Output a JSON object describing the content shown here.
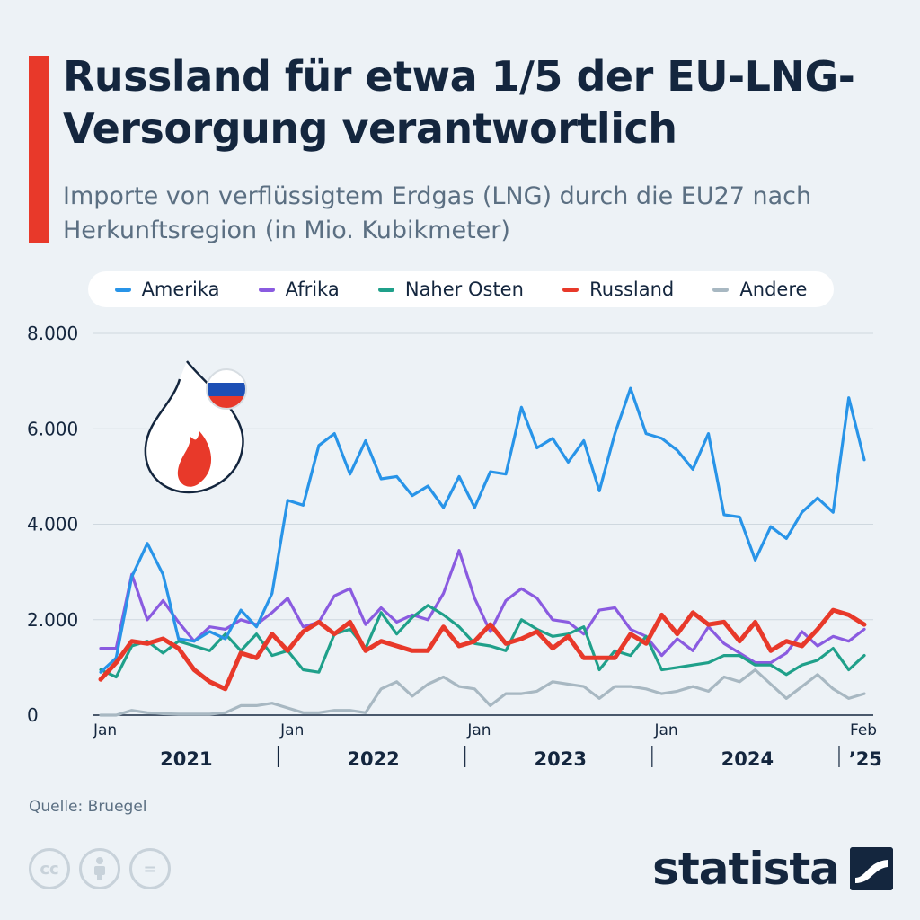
{
  "title": "Russland für etwa 1/5 der EU-LNG-Versorgung verantwortlich",
  "subtitle": "Importe von verflüssigtem Erdgas (LNG) durch die EU27 nach Herkunftsregion (in Mio. Kubikmeter)",
  "source": "Quelle: Bruegel",
  "brand": "statista",
  "license_icons": [
    "cc-icon",
    "attribution-icon",
    "no-derivatives-icon"
  ],
  "license_labels": [
    "cc",
    "",
    "="
  ],
  "chart_data": {
    "type": "line",
    "ylim": [
      0,
      8000
    ],
    "yticks": [
      0,
      2000,
      4000,
      6000,
      8000
    ],
    "ytick_labels": [
      "0",
      "2.000",
      "4.000",
      "6.000",
      "8.000"
    ],
    "x": [
      "2021-01",
      "2021-02",
      "2021-03",
      "2021-04",
      "2021-05",
      "2021-06",
      "2021-07",
      "2021-08",
      "2021-09",
      "2021-10",
      "2021-11",
      "2021-12",
      "2022-01",
      "2022-02",
      "2022-03",
      "2022-04",
      "2022-05",
      "2022-06",
      "2022-07",
      "2022-08",
      "2022-09",
      "2022-10",
      "2022-11",
      "2022-12",
      "2023-01",
      "2023-02",
      "2023-03",
      "2023-04",
      "2023-05",
      "2023-06",
      "2023-07",
      "2023-08",
      "2023-09",
      "2023-10",
      "2023-11",
      "2023-12",
      "2024-01",
      "2024-02",
      "2024-03",
      "2024-04",
      "2024-05",
      "2024-06",
      "2024-07",
      "2024-08",
      "2024-09",
      "2024-10",
      "2024-11",
      "2024-12",
      "2025-01",
      "2025-02"
    ],
    "x_tick_labels": [
      {
        "index": 0,
        "label": "Jan"
      },
      {
        "index": 12,
        "label": "Jan"
      },
      {
        "index": 24,
        "label": "Jan"
      },
      {
        "index": 36,
        "label": "Jan"
      },
      {
        "index": 49,
        "label": "Feb"
      }
    ],
    "year_labels": [
      {
        "label": "2021",
        "start": 0,
        "end": 11
      },
      {
        "label": "2022",
        "start": 12,
        "end": 23
      },
      {
        "label": "2023",
        "start": 24,
        "end": 35
      },
      {
        "label": "2024",
        "start": 36,
        "end": 47
      },
      {
        "label": "’25",
        "start": 48,
        "end": 49
      }
    ],
    "series": [
      {
        "name": "Amerika",
        "color": "#2894e8",
        "width": 3.2,
        "values": [
          900,
          1200,
          2900,
          3600,
          2950,
          1600,
          1550,
          1750,
          1600,
          2200,
          1850,
          2550,
          4500,
          4400,
          5650,
          5900,
          5050,
          5750,
          4950,
          5000,
          4600,
          4800,
          4350,
          5000,
          4350,
          5100,
          5050,
          6450,
          5600,
          5800,
          5300,
          5750,
          4700,
          5900,
          6850,
          5900,
          5800,
          5550,
          5150,
          5900,
          4200,
          4150,
          3250,
          3950,
          3700,
          4250,
          4550,
          4250,
          6650,
          5350
        ]
      },
      {
        "name": "Afrika",
        "color": "#8a5be0",
        "width": 3.2,
        "values": [
          1400,
          1400,
          2950,
          2000,
          2400,
          1950,
          1550,
          1850,
          1800,
          2000,
          1900,
          2150,
          2450,
          1850,
          1950,
          2500,
          2650,
          1900,
          2250,
          1950,
          2100,
          2000,
          2550,
          3450,
          2450,
          1750,
          2400,
          2650,
          2450,
          2000,
          1950,
          1700,
          2200,
          2250,
          1800,
          1650,
          1250,
          1600,
          1350,
          1850,
          1500,
          1300,
          1100,
          1100,
          1300,
          1750,
          1450,
          1650,
          1550,
          1800
        ]
      },
      {
        "name": "Naher Osten",
        "color": "#1fa08a",
        "width": 3.2,
        "values": [
          950,
          800,
          1450,
          1550,
          1300,
          1550,
          1450,
          1350,
          1700,
          1350,
          1700,
          1250,
          1350,
          950,
          900,
          1700,
          1800,
          1400,
          2150,
          1700,
          2050,
          2300,
          2100,
          1850,
          1500,
          1450,
          1350,
          2000,
          1800,
          1650,
          1700,
          1850,
          950,
          1350,
          1250,
          1650,
          950,
          1000,
          1050,
          1100,
          1250,
          1250,
          1050,
          1050,
          850,
          1050,
          1150,
          1400,
          950,
          1250
        ]
      },
      {
        "name": "Russland",
        "color": "#e8392a",
        "width": 5,
        "values": [
          750,
          1100,
          1550,
          1500,
          1600,
          1400,
          950,
          700,
          550,
          1300,
          1200,
          1700,
          1350,
          1750,
          1950,
          1700,
          1950,
          1350,
          1550,
          1450,
          1350,
          1350,
          1850,
          1450,
          1550,
          1900,
          1500,
          1600,
          1750,
          1400,
          1650,
          1200,
          1200,
          1200,
          1700,
          1500,
          2100,
          1700,
          2150,
          1900,
          1950,
          1550,
          1950,
          1350,
          1550,
          1450,
          1800,
          2200,
          2100,
          1900
        ]
      },
      {
        "name": "Andere",
        "color": "#a8b8c2",
        "width": 3.2,
        "values": [
          0,
          0,
          100,
          50,
          30,
          20,
          20,
          20,
          50,
          200,
          200,
          250,
          150,
          50,
          50,
          100,
          100,
          50,
          550,
          700,
          400,
          650,
          800,
          600,
          550,
          200,
          450,
          450,
          500,
          700,
          650,
          600,
          350,
          600,
          600,
          550,
          450,
          500,
          600,
          500,
          800,
          700,
          950,
          650,
          350,
          600,
          850,
          550,
          350,
          450
        ]
      }
    ]
  }
}
